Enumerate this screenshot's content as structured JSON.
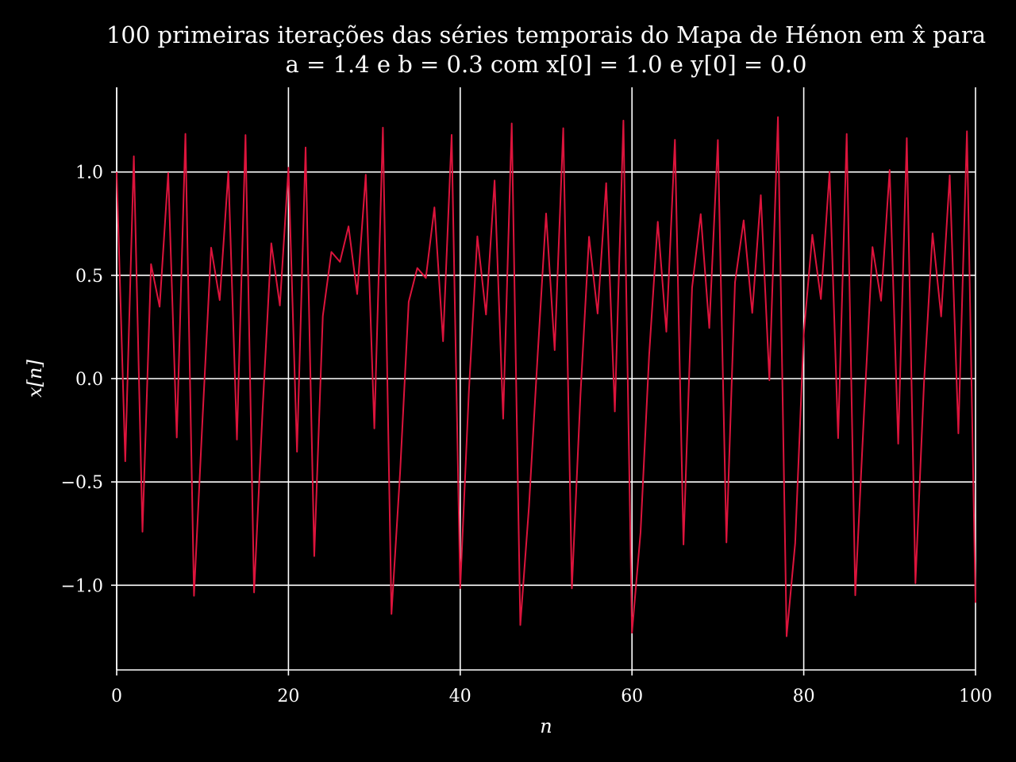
{
  "chart_data": {
    "type": "line",
    "title_line1": "100 primeiras iterações das séries temporais do Mapa de Hénon em x̂ para",
    "title_line2": "a = 1.4 e b = 0.3 com x[0] = 1.0 e y[0] = 0.0",
    "xlabel": "n",
    "ylabel": "x[n]",
    "xlim": [
      0,
      100
    ],
    "ylim": [
      -1.41,
      1.41
    ],
    "x_ticks": [
      0,
      20,
      40,
      60,
      80,
      100
    ],
    "x_tick_labels": [
      "0",
      "20",
      "40",
      "60",
      "80",
      "100"
    ],
    "y_ticks": [
      -1.0,
      -0.5,
      0.0,
      0.5,
      1.0
    ],
    "y_tick_labels": [
      "−1.0",
      "−0.5",
      "0.0",
      "0.5",
      "1.0"
    ],
    "grid": true,
    "colors": {
      "background": "#000000",
      "line": "#dc143c",
      "grid": "#ffffff",
      "text": "#ffffff"
    },
    "series": [
      {
        "x": [
          0,
          1,
          2,
          3,
          4,
          5,
          6,
          7,
          8,
          9,
          10,
          11,
          12,
          13,
          14,
          15,
          16,
          17,
          18,
          19,
          20,
          21,
          22,
          23,
          24,
          25,
          26,
          27,
          28,
          29,
          30,
          31,
          32,
          33,
          34,
          35,
          36,
          37,
          38,
          39,
          40,
          41,
          42,
          43,
          44,
          45,
          46,
          47,
          48,
          49,
          50,
          51,
          52,
          53,
          54,
          55,
          56,
          57,
          58,
          59,
          60,
          61,
          62,
          63,
          64,
          65,
          66,
          67,
          68,
          69,
          70,
          71,
          72,
          73,
          74,
          75,
          76,
          77,
          78,
          79,
          80,
          81,
          82,
          83,
          84,
          85,
          86,
          87,
          88,
          89,
          90,
          91,
          92,
          93,
          94,
          95,
          96,
          97,
          98,
          99,
          100
        ],
        "values": [
          1.0,
          -0.4,
          1.076,
          -0.741,
          0.554,
          0.348,
          0.996,
          -0.285,
          1.185,
          -1.051,
          -0.191,
          0.634,
          0.38,
          1.003,
          -0.295,
          1.179,
          -1.035,
          -0.146,
          0.655,
          0.354,
          1.021,
          -0.354,
          1.119,
          -0.859,
          0.303,
          0.613,
          0.565,
          0.737,
          0.409,
          0.987,
          -0.241,
          1.215,
          -1.139,
          -0.452,
          0.372,
          0.535,
          0.487,
          0.829,
          0.181,
          1.18,
          -1.014,
          -0.072,
          0.689,
          0.31,
          0.959,
          -0.194,
          1.235,
          -1.193,
          -0.621,
          0.103,
          0.799,
          0.138,
          1.212,
          -1.015,
          -0.078,
          0.687,
          0.315,
          0.946,
          -0.159,
          1.249,
          -1.23,
          -0.744,
          0.113,
          0.759,
          0.227,
          1.156,
          -0.803,
          0.44,
          0.796,
          0.245,
          1.155,
          -0.793,
          0.466,
          0.766,
          0.318,
          0.888,
          -0.008,
          1.266,
          -1.247,
          -0.797,
          0.215,
          0.696,
          0.385,
          1.001,
          -0.288,
          1.184,
          -1.049,
          -0.185,
          0.637,
          0.377,
          1.01,
          -0.315,
          1.164,
          -0.99,
          -0.022,
          0.703,
          0.301,
          0.984,
          -0.265,
          1.197,
          -1.085
        ]
      }
    ]
  }
}
